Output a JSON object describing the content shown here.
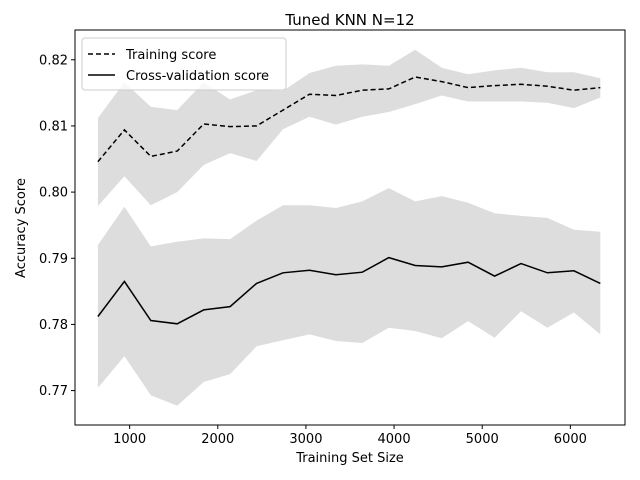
{
  "chart_data": {
    "type": "line",
    "title": "Tuned KNN N=12",
    "xlabel": "Training Set Size",
    "ylabel": "Accuracy Score",
    "xlim": [
      380,
      6620
    ],
    "ylim": [
      0.7648,
      0.8245
    ],
    "xticks": [
      1000,
      2000,
      3000,
      4000,
      5000,
      6000
    ],
    "xtick_labels": [
      "1000",
      "2000",
      "3000",
      "4000",
      "5000",
      "6000"
    ],
    "yticks": [
      0.77,
      0.78,
      0.79,
      0.8,
      0.81,
      0.82
    ],
    "ytick_labels": [
      "0.77",
      "0.78",
      "0.79",
      "0.80",
      "0.81",
      "0.82"
    ],
    "legend_position": "upper-left",
    "x": [
      640,
      940,
      1240,
      1540,
      1840,
      2140,
      2440,
      2740,
      3040,
      3340,
      3640,
      3940,
      4240,
      4540,
      4840,
      5140,
      5440,
      5740,
      6040,
      6340
    ],
    "series": [
      {
        "name": "Training score",
        "style": "dashed",
        "color": "#000000",
        "values": [
          0.8046,
          0.8094,
          0.8054,
          0.8062,
          0.8103,
          0.8099,
          0.81,
          0.8124,
          0.8148,
          0.8146,
          0.8154,
          0.8156,
          0.8174,
          0.8167,
          0.8158,
          0.8161,
          0.8163,
          0.816,
          0.8154,
          0.8158
        ],
        "band_upper": [
          0.8112,
          0.8166,
          0.8129,
          0.8124,
          0.8166,
          0.814,
          0.8154,
          0.8153,
          0.818,
          0.8191,
          0.8193,
          0.8191,
          0.8215,
          0.8188,
          0.8178,
          0.8184,
          0.8188,
          0.8181,
          0.8181,
          0.8172
        ],
        "band_lower": [
          0.7979,
          0.8024,
          0.798,
          0.8,
          0.8041,
          0.8059,
          0.8047,
          0.8095,
          0.8114,
          0.8102,
          0.8114,
          0.8121,
          0.8133,
          0.8146,
          0.8137,
          0.8137,
          0.8137,
          0.8135,
          0.8127,
          0.8143
        ]
      },
      {
        "name": "Cross-validation score",
        "style": "solid",
        "color": "#000000",
        "values": [
          0.7812,
          0.7865,
          0.7806,
          0.7801,
          0.7822,
          0.7827,
          0.7862,
          0.7878,
          0.7882,
          0.7875,
          0.7879,
          0.7901,
          0.7889,
          0.7887,
          0.7894,
          0.7873,
          0.7892,
          0.7878,
          0.7881,
          0.7862
        ],
        "band_upper": [
          0.792,
          0.7978,
          0.7918,
          0.7925,
          0.793,
          0.7929,
          0.7957,
          0.798,
          0.798,
          0.7976,
          0.7986,
          0.8006,
          0.7986,
          0.7994,
          0.7984,
          0.7968,
          0.7964,
          0.7961,
          0.7943,
          0.794
        ],
        "band_lower": [
          0.7704,
          0.7752,
          0.7693,
          0.7677,
          0.7713,
          0.7725,
          0.7767,
          0.7776,
          0.7785,
          0.7775,
          0.7772,
          0.7795,
          0.779,
          0.7779,
          0.7805,
          0.778,
          0.782,
          0.7795,
          0.7818,
          0.7785
        ]
      }
    ],
    "band_color": "#dddddd",
    "grid": false
  }
}
